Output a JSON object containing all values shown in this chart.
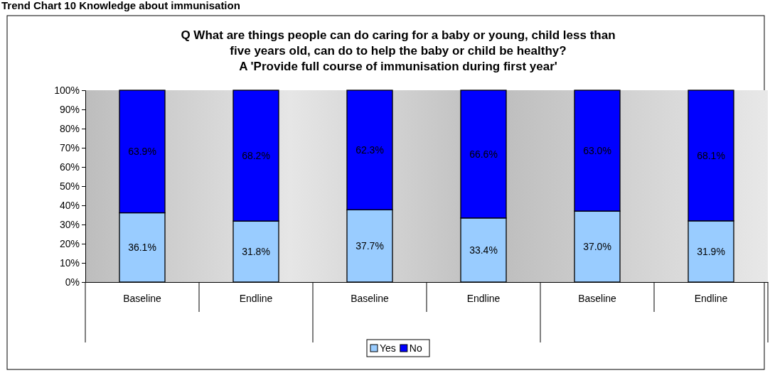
{
  "chart_data": {
    "type": "bar",
    "title": "Trend Chart 10 Knowledge about immunisation",
    "subtitle": "Q What are things people can do caring for a baby or young, child less than\nfive years old, can do to help the baby or child be healthy?\nA 'Provide full course of immunisation during first year'",
    "categories": [
      "Baseline",
      "Endline",
      "Baseline",
      "Endline",
      "Baseline",
      "Endline"
    ],
    "series": [
      {
        "name": "Yes",
        "color": "#99ccff",
        "values": [
          36.1,
          31.8,
          37.7,
          33.4,
          37.0,
          31.9
        ],
        "value_labels": [
          "36.1%",
          "31.8%",
          "37.7%",
          "33.4%",
          "37.0%",
          "31.9%"
        ]
      },
      {
        "name": "No",
        "color": "#0000ff",
        "values": [
          63.9,
          68.2,
          62.3,
          66.6,
          63.0,
          68.1
        ],
        "value_labels": [
          "63.9%",
          "68.2%",
          "62.3%",
          "66.6%",
          "63.0%",
          "68.1%"
        ]
      }
    ],
    "stacked": true,
    "ylim": [
      0,
      100
    ],
    "yticks": [
      {
        "value": 0,
        "label": "0%"
      },
      {
        "value": 10,
        "label": "10%"
      },
      {
        "value": 20,
        "label": "20%"
      },
      {
        "value": 30,
        "label": "30%"
      },
      {
        "value": 40,
        "label": "40%"
      },
      {
        "value": 50,
        "label": "50%"
      },
      {
        "value": 60,
        "label": "60%"
      },
      {
        "value": 70,
        "label": "70%"
      },
      {
        "value": 80,
        "label": "80%"
      },
      {
        "value": 90,
        "label": "90%"
      },
      {
        "value": 100,
        "label": "100%"
      }
    ],
    "legend": "bottom"
  }
}
